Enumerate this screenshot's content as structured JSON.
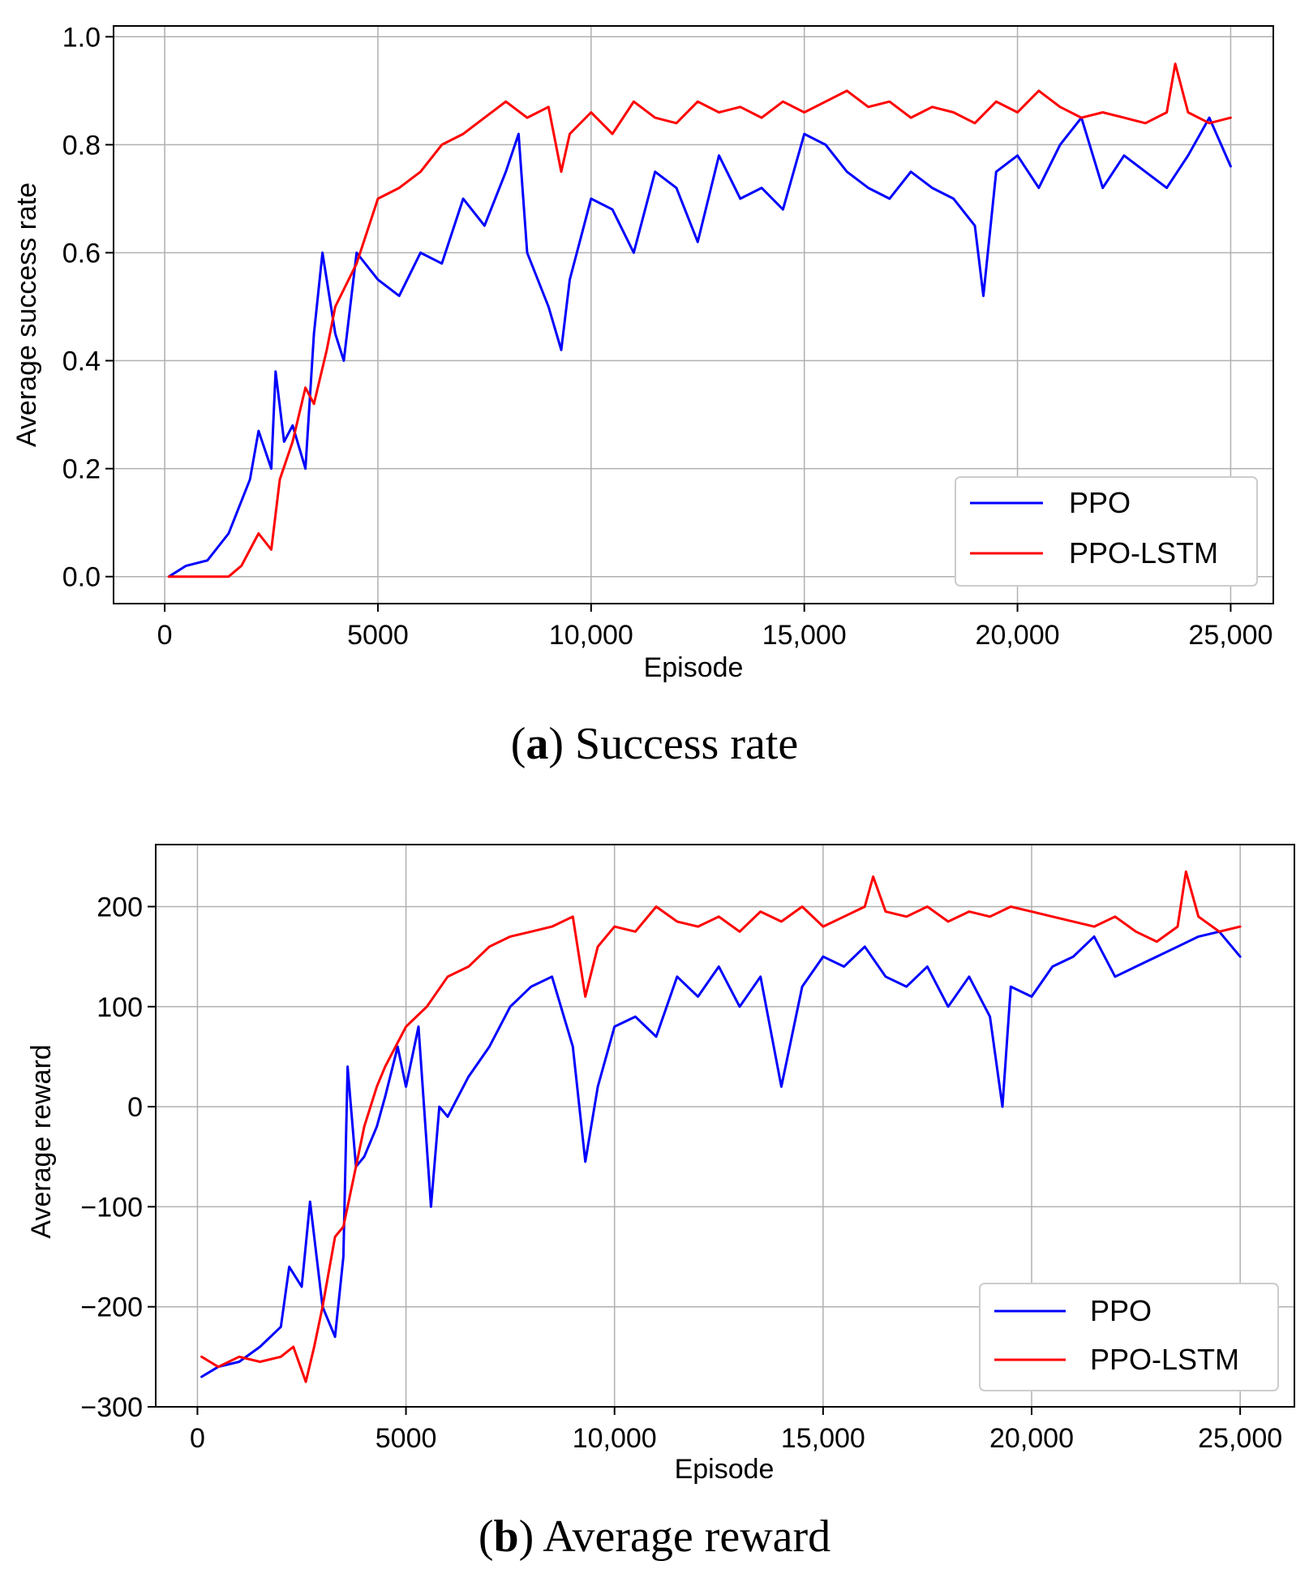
{
  "chart_data": [
    {
      "type": "line",
      "panel": "a",
      "caption_letter": "a",
      "caption_text": "Success rate",
      "xlabel": "Episode",
      "ylabel": "Average success rate",
      "xlim": [
        -1200,
        26000
      ],
      "ylim": [
        -0.05,
        1.02
      ],
      "xticks": [
        0,
        5000,
        10000,
        15000,
        20000,
        25000
      ],
      "xtick_labels": [
        "0",
        "5000",
        "10,000",
        "15,000",
        "20,000",
        "25,000"
      ],
      "yticks": [
        0.0,
        0.2,
        0.4,
        0.6,
        0.8,
        1.0
      ],
      "ytick_labels": [
        "0.0",
        "0.2",
        "0.4",
        "0.6",
        "0.8",
        "1.0"
      ],
      "grid": true,
      "legend_position": "bottom-right",
      "series": [
        {
          "name": "PPO",
          "color": "#0000ff",
          "x": [
            100,
            500,
            1000,
            1500,
            2000,
            2200,
            2500,
            2600,
            2800,
            3000,
            3300,
            3500,
            3700,
            4000,
            4200,
            4500,
            5000,
            5500,
            6000,
            6500,
            7000,
            7500,
            8000,
            8300,
            8500,
            9000,
            9300,
            9500,
            10000,
            10500,
            11000,
            11500,
            12000,
            12500,
            13000,
            13500,
            14000,
            14500,
            15000,
            15500,
            16000,
            16500,
            17000,
            17500,
            18000,
            18500,
            19000,
            19200,
            19500,
            20000,
            20500,
            21000,
            21500,
            22000,
            22500,
            23000,
            23500,
            24000,
            24500,
            25000
          ],
          "y": [
            0.0,
            0.02,
            0.03,
            0.08,
            0.18,
            0.27,
            0.2,
            0.38,
            0.25,
            0.28,
            0.2,
            0.45,
            0.6,
            0.45,
            0.4,
            0.6,
            0.55,
            0.52,
            0.6,
            0.58,
            0.7,
            0.65,
            0.75,
            0.82,
            0.6,
            0.5,
            0.42,
            0.55,
            0.7,
            0.68,
            0.6,
            0.75,
            0.72,
            0.62,
            0.78,
            0.7,
            0.72,
            0.68,
            0.82,
            0.8,
            0.75,
            0.72,
            0.7,
            0.75,
            0.72,
            0.7,
            0.65,
            0.52,
            0.75,
            0.78,
            0.72,
            0.8,
            0.85,
            0.72,
            0.78,
            0.75,
            0.72,
            0.78,
            0.85,
            0.76
          ]
        },
        {
          "name": "PPO-LSTM",
          "color": "#ff0000",
          "x": [
            100,
            500,
            1000,
            1500,
            1800,
            2000,
            2200,
            2500,
            2700,
            3000,
            3300,
            3500,
            3800,
            4000,
            4500,
            5000,
            5500,
            6000,
            6500,
            7000,
            7500,
            8000,
            8500,
            9000,
            9300,
            9500,
            10000,
            10500,
            11000,
            11500,
            12000,
            12500,
            13000,
            13500,
            14000,
            14500,
            15000,
            15500,
            16000,
            16500,
            17000,
            17500,
            18000,
            18500,
            19000,
            19500,
            20000,
            20500,
            21000,
            21500,
            22000,
            22500,
            23000,
            23500,
            23700,
            24000,
            24500,
            25000
          ],
          "y": [
            0.0,
            0.0,
            0.0,
            0.0,
            0.02,
            0.05,
            0.08,
            0.05,
            0.18,
            0.25,
            0.35,
            0.32,
            0.42,
            0.5,
            0.58,
            0.7,
            0.72,
            0.75,
            0.8,
            0.82,
            0.85,
            0.88,
            0.85,
            0.87,
            0.75,
            0.82,
            0.86,
            0.82,
            0.88,
            0.85,
            0.84,
            0.88,
            0.86,
            0.87,
            0.85,
            0.88,
            0.86,
            0.88,
            0.9,
            0.87,
            0.88,
            0.85,
            0.87,
            0.86,
            0.84,
            0.88,
            0.86,
            0.9,
            0.87,
            0.85,
            0.86,
            0.85,
            0.84,
            0.86,
            0.95,
            0.86,
            0.84,
            0.85
          ]
        }
      ]
    },
    {
      "type": "line",
      "panel": "b",
      "caption_letter": "b",
      "caption_text": "Average reward",
      "xlabel": "Episode",
      "ylabel": "Average reward",
      "xlim": [
        -1000,
        26300
      ],
      "ylim": [
        -300,
        262
      ],
      "xticks": [
        0,
        5000,
        10000,
        15000,
        20000,
        25000
      ],
      "xtick_labels": [
        "0",
        "5000",
        "10,000",
        "15,000",
        "20,000",
        "25,000"
      ],
      "yticks": [
        -300,
        -200,
        -100,
        0,
        100,
        200
      ],
      "ytick_labels": [
        "−300",
        "−200",
        "−100",
        "0",
        "100",
        "200"
      ],
      "grid": true,
      "legend_position": "bottom-right",
      "series": [
        {
          "name": "PPO",
          "color": "#0000ff",
          "x": [
            100,
            500,
            1000,
            1500,
            2000,
            2200,
            2500,
            2700,
            3000,
            3300,
            3500,
            3600,
            3800,
            4000,
            4300,
            4500,
            4800,
            5000,
            5300,
            5600,
            5800,
            6000,
            6500,
            7000,
            7500,
            8000,
            8500,
            9000,
            9300,
            9600,
            10000,
            10500,
            11000,
            11500,
            12000,
            12500,
            13000,
            13500,
            14000,
            14500,
            15000,
            15500,
            16000,
            16500,
            17000,
            17500,
            18000,
            18500,
            19000,
            19300,
            19500,
            20000,
            20500,
            21000,
            21500,
            22000,
            22500,
            23000,
            23500,
            24000,
            24500,
            25000
          ],
          "y": [
            -270,
            -260,
            -255,
            -240,
            -220,
            -160,
            -180,
            -95,
            -200,
            -230,
            -150,
            40,
            -60,
            -50,
            -20,
            10,
            60,
            20,
            80,
            -100,
            0,
            -10,
            30,
            60,
            100,
            120,
            130,
            60,
            -55,
            20,
            80,
            90,
            70,
            130,
            110,
            140,
            100,
            130,
            20,
            120,
            150,
            140,
            160,
            130,
            120,
            140,
            100,
            130,
            90,
            0,
            120,
            110,
            140,
            150,
            170,
            130,
            140,
            150,
            160,
            170,
            175,
            150
          ]
        },
        {
          "name": "PPO-LSTM",
          "color": "#ff0000",
          "x": [
            100,
            500,
            1000,
            1500,
            2000,
            2300,
            2600,
            2800,
            3000,
            3300,
            3500,
            3800,
            4000,
            4300,
            4500,
            5000,
            5500,
            6000,
            6500,
            7000,
            7500,
            8000,
            8500,
            9000,
            9300,
            9600,
            10000,
            10500,
            11000,
            11500,
            12000,
            12500,
            13000,
            13500,
            14000,
            14500,
            15000,
            15500,
            16000,
            16200,
            16500,
            17000,
            17500,
            18000,
            18500,
            19000,
            19500,
            20000,
            20500,
            21000,
            21500,
            22000,
            22500,
            23000,
            23500,
            23700,
            24000,
            24500,
            25000
          ],
          "y": [
            -250,
            -260,
            -250,
            -255,
            -250,
            -240,
            -275,
            -240,
            -200,
            -130,
            -120,
            -60,
            -20,
            20,
            40,
            80,
            100,
            130,
            140,
            160,
            170,
            175,
            180,
            190,
            110,
            160,
            180,
            175,
            200,
            185,
            180,
            190,
            175,
            195,
            185,
            200,
            180,
            190,
            200,
            230,
            195,
            190,
            200,
            185,
            195,
            190,
            200,
            195,
            190,
            185,
            180,
            190,
            175,
            165,
            180,
            235,
            190,
            175,
            180
          ]
        }
      ]
    }
  ]
}
